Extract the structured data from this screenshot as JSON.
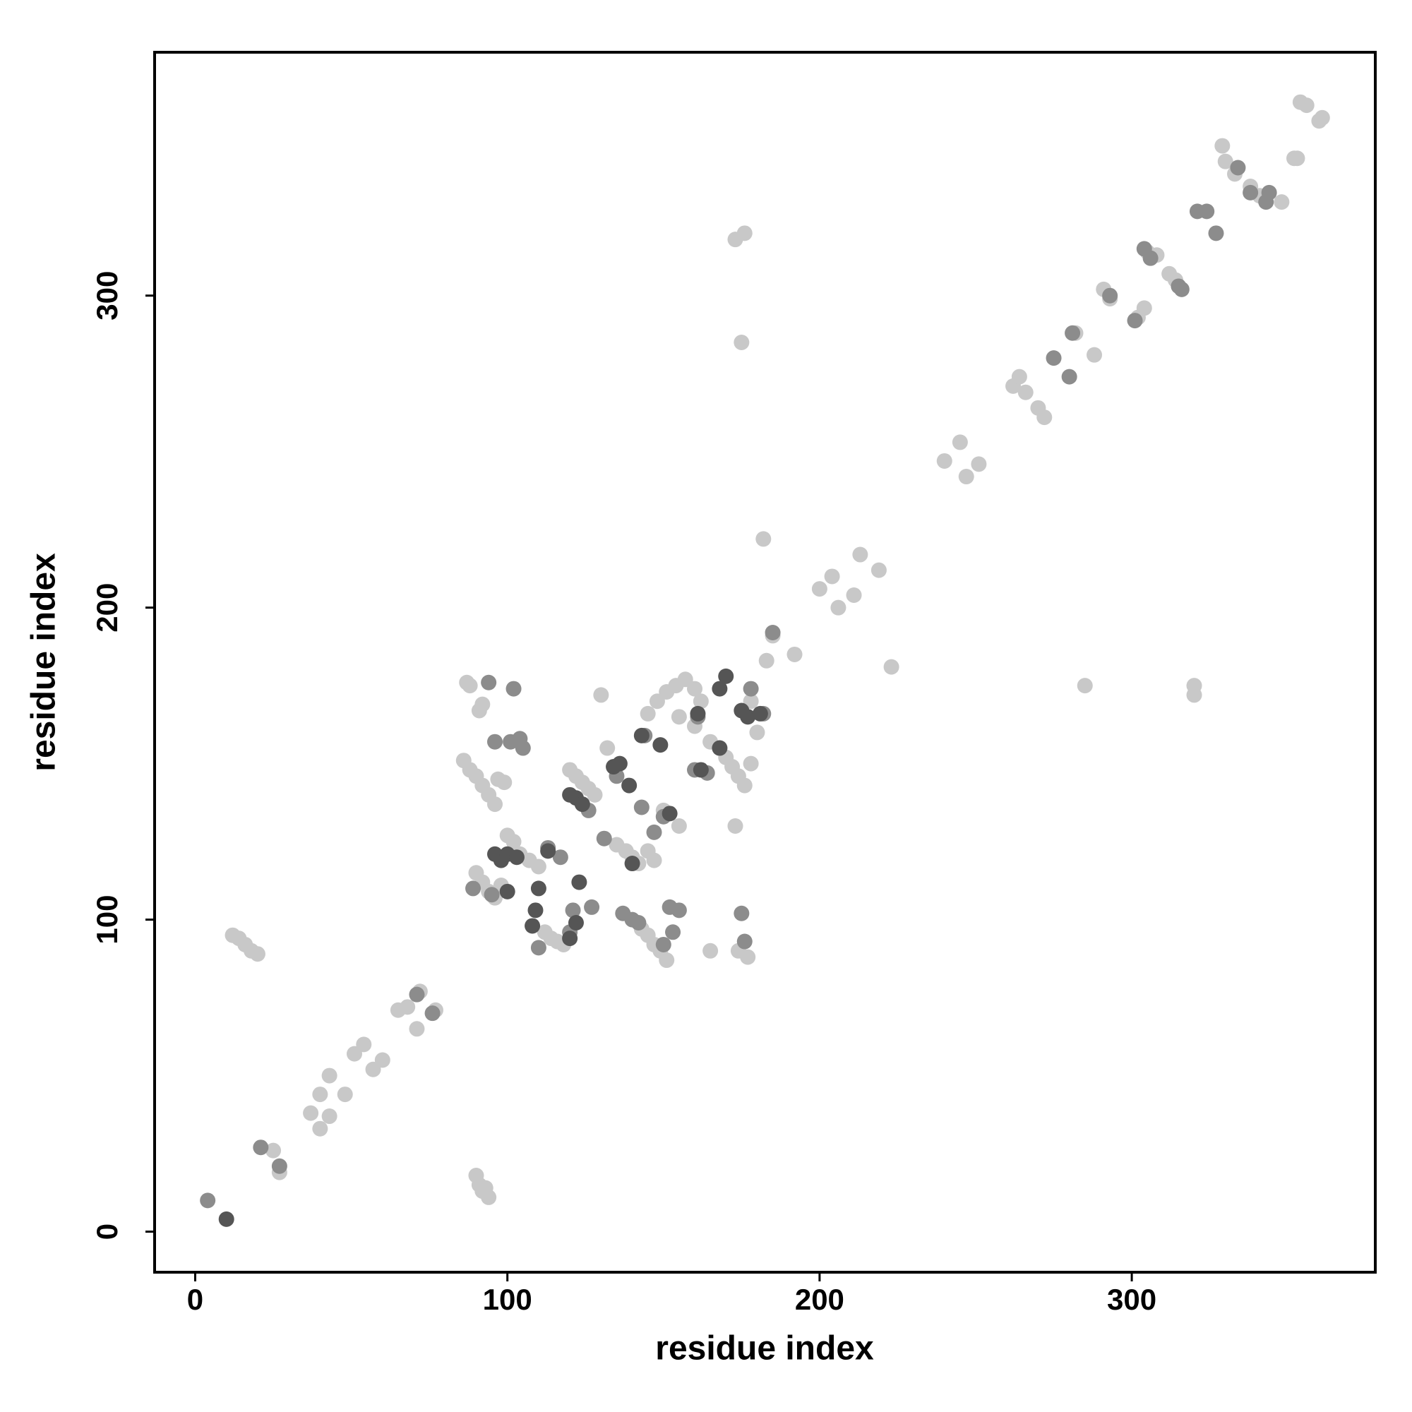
{
  "chart_data": {
    "type": "scatter",
    "xlabel": "residue index",
    "ylabel": "residue index",
    "xlim": [
      -13,
      378
    ],
    "ylim": [
      -13,
      378
    ],
    "xticks": [
      0,
      100,
      200,
      300
    ],
    "yticks": [
      0,
      100,
      200,
      300
    ],
    "series": [
      {
        "color": "#c8c8c8",
        "x": [
          25,
          27,
          37,
          40,
          43,
          43,
          48,
          51,
          54,
          57,
          60,
          65,
          68,
          71,
          72,
          77,
          40,
          12,
          14,
          16,
          18,
          20,
          90,
          91,
          92,
          94,
          93,
          86,
          88,
          90,
          92,
          94,
          96,
          97,
          99,
          87,
          91,
          92,
          88,
          90,
          92,
          94,
          96,
          98,
          100,
          102,
          104,
          107,
          110,
          112,
          114,
          116,
          118,
          120,
          122,
          124,
          126,
          128,
          130,
          132,
          135,
          138,
          140,
          142,
          145,
          147,
          143,
          145,
          147,
          149,
          151,
          145,
          148,
          151,
          154,
          157,
          160,
          162,
          165,
          168,
          170,
          172,
          174,
          176,
          178,
          180,
          178,
          183,
          185,
          192,
          174,
          177,
          173,
          155,
          150,
          165,
          160,
          155,
          200,
          204,
          206,
          211,
          213,
          219,
          182,
          223,
          240,
          245,
          247,
          251,
          262,
          264,
          266,
          270,
          272,
          282,
          288,
          291,
          293,
          302,
          304,
          305,
          308,
          312,
          314,
          330,
          333,
          338,
          341,
          348,
          352,
          353,
          354,
          356,
          360,
          361,
          173,
          176,
          175,
          285,
          320,
          320,
          329
        ],
        "values": [
          26,
          19,
          38,
          44,
          50,
          37,
          44,
          57,
          60,
          52,
          55,
          71,
          72,
          65,
          77,
          71,
          33,
          95,
          94,
          92,
          90,
          89,
          18,
          15,
          13,
          11,
          14,
          151,
          148,
          146,
          143,
          140,
          137,
          145,
          144,
          176,
          167,
          169,
          175,
          115,
          112,
          109,
          107,
          111,
          127,
          125,
          121,
          119,
          117,
          96,
          94,
          93,
          92,
          148,
          146,
          144,
          142,
          140,
          172,
          155,
          124,
          122,
          120,
          118,
          122,
          119,
          97,
          95,
          92,
          90,
          87,
          166,
          170,
          173,
          175,
          177,
          174,
          170,
          157,
          155,
          152,
          149,
          146,
          143,
          150,
          160,
          170,
          183,
          191,
          185,
          90,
          88,
          130,
          130,
          135,
          90,
          162,
          165,
          206,
          210,
          200,
          204,
          217,
          212,
          222,
          181,
          247,
          253,
          242,
          246,
          271,
          274,
          269,
          264,
          261,
          288,
          281,
          302,
          299,
          293,
          296,
          314,
          313,
          307,
          305,
          343,
          339,
          335,
          332,
          330,
          344,
          344,
          362,
          361,
          356,
          357,
          318,
          320,
          285,
          175,
          172,
          175,
          348
        ]
      },
      {
        "color": "#8c8c8c",
        "x": [
          4,
          21,
          27,
          71,
          76,
          94,
          102,
          101,
          104,
          105,
          96,
          89,
          95,
          110,
          121,
          127,
          137,
          140,
          142,
          152,
          155,
          153,
          150,
          147,
          143,
          150,
          161,
          160,
          164,
          175,
          176,
          178,
          182,
          185,
          126,
          131,
          135,
          117,
          113,
          120,
          144,
          275,
          281,
          280,
          293,
          301,
          304,
          306,
          315,
          316,
          321,
          327,
          324,
          334,
          338,
          344,
          343
        ],
        "values": [
          10,
          27,
          21,
          76,
          70,
          176,
          174,
          157,
          158,
          155,
          157,
          110,
          108,
          91,
          103,
          104,
          102,
          100,
          99,
          104,
          103,
          96,
          92,
          128,
          136,
          133,
          165,
          148,
          147,
          102,
          93,
          174,
          166,
          192,
          135,
          126,
          146,
          120,
          123,
          96,
          159,
          280,
          288,
          274,
          300,
          292,
          315,
          312,
          303,
          302,
          327,
          320,
          327,
          341,
          333,
          333,
          330
        ]
      },
      {
        "color": "#555555",
        "x": [
          10,
          98,
          96,
          100,
          103,
          109,
          108,
          113,
          120,
          122,
          123,
          120,
          122,
          124,
          136,
          139,
          140,
          134,
          143,
          149,
          152,
          161,
          162,
          168,
          170,
          168,
          175,
          177,
          181,
          110,
          100
        ],
        "values": [
          4,
          119,
          121,
          121,
          120,
          103,
          98,
          122,
          140,
          139,
          112,
          94,
          99,
          137,
          150,
          143,
          118,
          149,
          159,
          156,
          134,
          166,
          148,
          174,
          178,
          155,
          167,
          165,
          166,
          110,
          109
        ]
      }
    ]
  }
}
